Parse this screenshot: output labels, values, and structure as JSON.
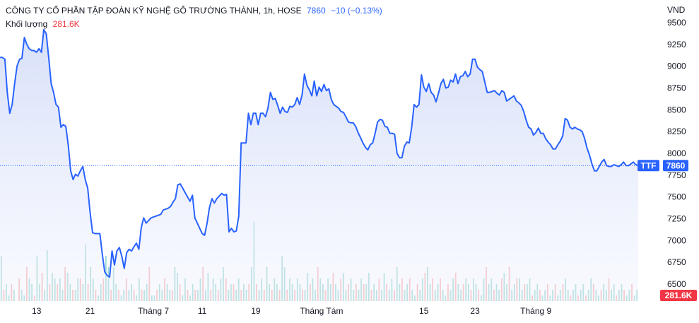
{
  "legend": {
    "symbol_title": "CÔNG TY CỔ PHẦN TẬP ĐOÀN KỸ NGHỆ GỖ TRƯỜNG THÀNH, 1h, HOSE",
    "last_price": "7860",
    "change": "−10 (−0.13%)",
    "volume_label": "Khối lượng",
    "volume_value": "281.6K"
  },
  "colors": {
    "line": "#2962ff",
    "fill_top": "#dbe4fb",
    "vol_up": "#26a69a",
    "vol_down": "#ef5350",
    "badge_blue": "#2962ff",
    "badge_red": "#f23645"
  },
  "chart_data": {
    "type": "area",
    "currency": "VND",
    "ylim": [
      6400,
      9600
    ],
    "yticks": [
      9500,
      9250,
      9000,
      8750,
      8500,
      8250,
      8000,
      7750,
      7500,
      7250,
      7000,
      6750,
      6500
    ],
    "x_labels": [
      {
        "label": "13",
        "index": 15
      },
      {
        "label": "21",
        "index": 37
      },
      {
        "label": "Tháng 7",
        "index": 63
      },
      {
        "label": "11",
        "index": 83
      },
      {
        "label": "19",
        "index": 105
      },
      {
        "label": "Tháng Tám",
        "index": 132
      },
      {
        "label": "15",
        "index": 174
      },
      {
        "label": "23",
        "index": 195
      },
      {
        "label": "Tháng 9",
        "index": 220
      }
    ],
    "series": [
      {
        "values": [
          9100,
          9100,
          9080,
          8700,
          8460,
          8560,
          8800,
          9000,
          9080,
          9090,
          9330,
          9250,
          9200,
          9180,
          9180,
          9160,
          9200,
          9160,
          9420,
          9370,
          9100,
          8800,
          8700,
          8560,
          8530,
          8300,
          8330,
          8310,
          8100,
          7800,
          7700,
          7760,
          7740,
          7800,
          7850,
          7700,
          7600,
          7320,
          7090,
          7080,
          7080,
          7080,
          6840,
          6640,
          6600,
          6580,
          6880,
          6720,
          6880,
          6920,
          6820,
          6680,
          6860,
          6900,
          6880,
          6930,
          6970,
          6900,
          7150,
          7260,
          7200,
          7230,
          7260,
          7270,
          7280,
          7290,
          7300,
          7350,
          7360,
          7370,
          7390,
          7440,
          7480,
          7640,
          7650,
          7600,
          7550,
          7500,
          7450,
          7520,
          7260,
          7200,
          7140,
          7080,
          7060,
          7200,
          7380,
          7480,
          7430,
          7480,
          7510,
          7540,
          7520,
          7530,
          7100,
          7140,
          7100,
          7110,
          7280,
          8120,
          8120,
          8120,
          8460,
          8330,
          8460,
          8460,
          8330,
          8460,
          8460,
          8420,
          8520,
          8700,
          8620,
          8630,
          8550,
          8460,
          8530,
          8480,
          8470,
          8540,
          8530,
          8560,
          8640,
          8560,
          8670,
          8910,
          8780,
          8730,
          8660,
          8830,
          8660,
          8760,
          8710,
          8790,
          8720,
          8740,
          8620,
          8560,
          8540,
          8520,
          8480,
          8470,
          8420,
          8360,
          8350,
          8350,
          8310,
          8240,
          8180,
          8120,
          8070,
          8040,
          8100,
          8120,
          8230,
          8360,
          8390,
          8380,
          8310,
          8300,
          8230,
          8230,
          8220,
          8000,
          7950,
          7950,
          8080,
          8130,
          8120,
          8300,
          8560,
          8530,
          8560,
          8900,
          8760,
          8710,
          8800,
          8700,
          8670,
          8590,
          8690,
          8800,
          8850,
          8750,
          8760,
          8840,
          8820,
          8910,
          8800,
          8880,
          8890,
          8940,
          8880,
          8910,
          9080,
          9080,
          8990,
          8960,
          8940,
          8820,
          8700,
          8700,
          8710,
          8720,
          8690,
          8670,
          8720,
          8700,
          8600,
          8620,
          8640,
          8660,
          8600,
          8580,
          8550,
          8480,
          8380,
          8300,
          8280,
          8210,
          8240,
          8290,
          8230,
          8230,
          8170,
          8130,
          8100,
          8050,
          8050,
          8100,
          8140,
          8200,
          8400,
          8380,
          8300,
          8280,
          8300,
          8280,
          8270,
          8250,
          8170,
          8060,
          7980,
          7880,
          7800,
          7800,
          7850,
          7900,
          7930,
          7860,
          7850,
          7850,
          7870,
          7860,
          7850,
          7870,
          7900,
          7860,
          7860,
          7880,
          7900,
          7870,
          7860
        ]
      }
    ],
    "last_value": 7860,
    "last_badge_label": "TTF",
    "volume_badge": "281.6K",
    "volume": [
      80,
      20,
      30,
      10,
      30,
      20,
      0,
      40,
      20,
      10,
      60,
      40,
      30,
      10,
      80,
      30,
      50,
      20,
      90,
      30,
      50,
      40,
      30,
      40,
      20,
      60,
      50,
      30,
      20,
      20,
      40,
      40,
      30,
      100,
      30,
      60,
      40,
      20,
      10,
      30,
      40,
      80,
      60,
      20,
      60,
      30,
      20,
      10,
      20,
      40,
      20,
      30,
      20,
      10,
      40,
      20,
      20,
      30,
      60,
      10,
      10,
      20,
      30,
      20,
      40,
      30,
      20,
      20,
      60,
      50,
      30,
      10,
      40,
      20,
      10,
      30,
      20,
      20,
      40,
      60,
      20,
      50,
      20,
      40,
      30,
      20,
      40,
      60,
      40,
      20,
      30,
      30,
      20,
      40,
      20,
      30,
      20,
      30,
      60,
      140,
      30,
      20,
      40,
      20,
      60,
      30,
      20,
      40,
      30,
      20,
      80,
      60,
      20,
      40,
      30,
      20,
      40,
      30,
      20,
      20,
      50,
      30,
      40,
      20,
      60,
      40,
      30,
      20,
      40,
      30,
      50,
      30,
      20,
      40,
      50,
      20,
      30,
      40,
      20,
      30,
      20,
      40,
      30,
      30,
      50,
      20,
      30,
      20,
      40,
      20,
      50,
      30,
      20,
      40,
      20,
      60,
      30,
      40,
      20,
      30,
      40,
      20,
      10,
      30,
      20,
      40,
      50,
      60,
      30,
      40,
      20,
      30,
      40,
      20,
      10,
      30,
      20,
      40,
      50,
      30,
      20,
      30,
      40,
      30,
      20,
      40,
      30,
      20,
      10,
      40,
      60,
      30,
      40,
      20,
      30,
      20,
      40,
      50,
      30,
      60,
      20,
      30,
      40,
      40,
      20,
      30,
      30,
      40,
      10,
      20,
      30,
      20,
      10,
      20,
      30,
      10,
      20,
      30,
      10,
      20,
      30,
      40,
      20,
      10,
      20,
      30,
      10,
      20,
      30,
      10,
      20,
      40,
      30,
      20,
      10,
      20,
      30,
      20,
      40,
      20,
      30,
      10,
      20,
      30,
      20,
      10,
      20,
      30,
      10,
      20
    ]
  }
}
